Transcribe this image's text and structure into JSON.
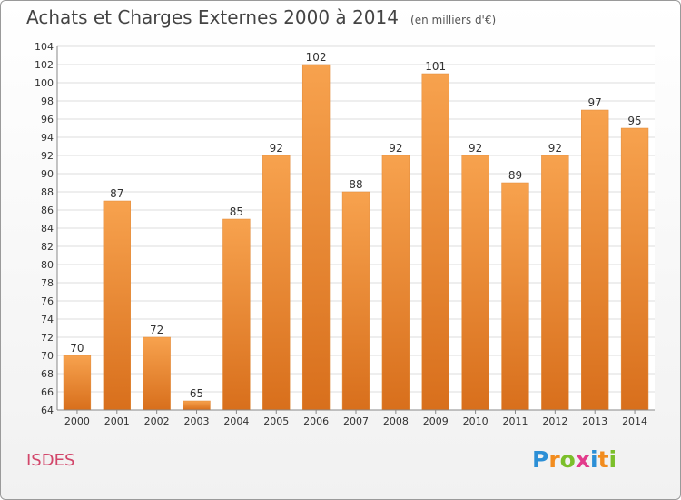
{
  "chart_data": {
    "type": "bar",
    "title": "Achats et Charges Externes 2000 à 2014",
    "subtitle": "(en milliers d'€)",
    "xlabel": "",
    "ylabel": "",
    "categories": [
      "2000",
      "2001",
      "2002",
      "2003",
      "2004",
      "2005",
      "2006",
      "2007",
      "2008",
      "2009",
      "2010",
      "2011",
      "2012",
      "2013",
      "2014"
    ],
    "values": [
      70,
      87,
      72,
      65,
      85,
      92,
      102,
      88,
      92,
      101,
      92,
      89,
      92,
      97,
      95
    ],
    "data_labels": [
      "70",
      "87",
      "72",
      "65",
      "85",
      "92",
      "102",
      "88",
      "92",
      "101",
      "92",
      "89",
      "92",
      "97",
      "95"
    ],
    "ylim": [
      64,
      104
    ],
    "yticks": [
      64,
      66,
      68,
      70,
      72,
      74,
      76,
      78,
      80,
      82,
      84,
      86,
      88,
      90,
      92,
      94,
      96,
      98,
      100,
      102,
      104
    ],
    "grid": true,
    "legend": "none",
    "bar_color_top": "#f7a24e",
    "bar_color_bottom": "#d86f1c"
  },
  "footer": {
    "commune": "ISDES",
    "brand_letters": [
      "P",
      "r",
      "o",
      "x",
      "i",
      "t",
      "i"
    ],
    "brand_colors": [
      "#2c8fd6",
      "#f28c1e",
      "#7bbf2a",
      "#e23b8b",
      "#2c8fd6",
      "#f28c1e",
      "#7bbf2a"
    ]
  }
}
